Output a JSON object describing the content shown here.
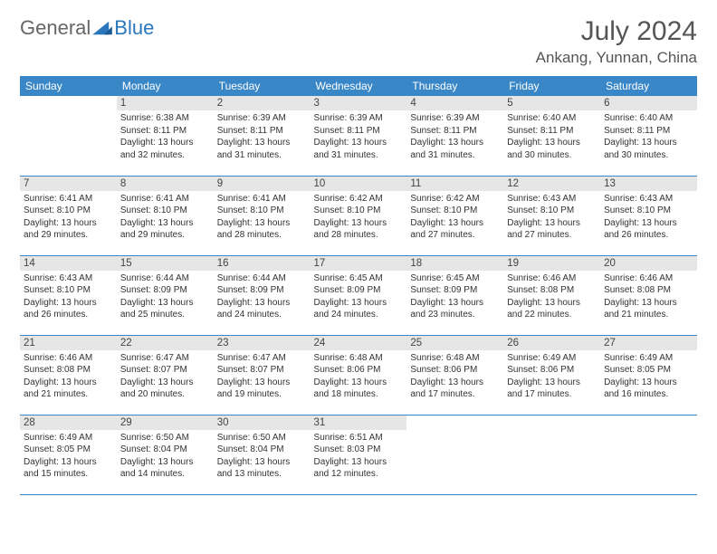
{
  "logo": {
    "general": "General",
    "blue": "Blue"
  },
  "header": {
    "month": "July 2024",
    "location": "Ankang, Yunnan, China"
  },
  "colors": {
    "header_bg": "#3a87c8",
    "header_text": "#ffffff",
    "daynum_bg": "#e6e6e6",
    "cell_border": "#3a87c8",
    "logo_blue": "#2a77bb",
    "text_gray": "#555555"
  },
  "weekdays": [
    "Sunday",
    "Monday",
    "Tuesday",
    "Wednesday",
    "Thursday",
    "Friday",
    "Saturday"
  ],
  "start_offset": 1,
  "days": [
    {
      "n": 1,
      "sunrise": "6:38 AM",
      "sunset": "8:11 PM",
      "dl1": "13 hours",
      "dl2": "and 32 minutes."
    },
    {
      "n": 2,
      "sunrise": "6:39 AM",
      "sunset": "8:11 PM",
      "dl1": "13 hours",
      "dl2": "and 31 minutes."
    },
    {
      "n": 3,
      "sunrise": "6:39 AM",
      "sunset": "8:11 PM",
      "dl1": "13 hours",
      "dl2": "and 31 minutes."
    },
    {
      "n": 4,
      "sunrise": "6:39 AM",
      "sunset": "8:11 PM",
      "dl1": "13 hours",
      "dl2": "and 31 minutes."
    },
    {
      "n": 5,
      "sunrise": "6:40 AM",
      "sunset": "8:11 PM",
      "dl1": "13 hours",
      "dl2": "and 30 minutes."
    },
    {
      "n": 6,
      "sunrise": "6:40 AM",
      "sunset": "8:11 PM",
      "dl1": "13 hours",
      "dl2": "and 30 minutes."
    },
    {
      "n": 7,
      "sunrise": "6:41 AM",
      "sunset": "8:10 PM",
      "dl1": "13 hours",
      "dl2": "and 29 minutes."
    },
    {
      "n": 8,
      "sunrise": "6:41 AM",
      "sunset": "8:10 PM",
      "dl1": "13 hours",
      "dl2": "and 29 minutes."
    },
    {
      "n": 9,
      "sunrise": "6:41 AM",
      "sunset": "8:10 PM",
      "dl1": "13 hours",
      "dl2": "and 28 minutes."
    },
    {
      "n": 10,
      "sunrise": "6:42 AM",
      "sunset": "8:10 PM",
      "dl1": "13 hours",
      "dl2": "and 28 minutes."
    },
    {
      "n": 11,
      "sunrise": "6:42 AM",
      "sunset": "8:10 PM",
      "dl1": "13 hours",
      "dl2": "and 27 minutes."
    },
    {
      "n": 12,
      "sunrise": "6:43 AM",
      "sunset": "8:10 PM",
      "dl1": "13 hours",
      "dl2": "and 27 minutes."
    },
    {
      "n": 13,
      "sunrise": "6:43 AM",
      "sunset": "8:10 PM",
      "dl1": "13 hours",
      "dl2": "and 26 minutes."
    },
    {
      "n": 14,
      "sunrise": "6:43 AM",
      "sunset": "8:10 PM",
      "dl1": "13 hours",
      "dl2": "and 26 minutes."
    },
    {
      "n": 15,
      "sunrise": "6:44 AM",
      "sunset": "8:09 PM",
      "dl1": "13 hours",
      "dl2": "and 25 minutes."
    },
    {
      "n": 16,
      "sunrise": "6:44 AM",
      "sunset": "8:09 PM",
      "dl1": "13 hours",
      "dl2": "and 24 minutes."
    },
    {
      "n": 17,
      "sunrise": "6:45 AM",
      "sunset": "8:09 PM",
      "dl1": "13 hours",
      "dl2": "and 24 minutes."
    },
    {
      "n": 18,
      "sunrise": "6:45 AM",
      "sunset": "8:09 PM",
      "dl1": "13 hours",
      "dl2": "and 23 minutes."
    },
    {
      "n": 19,
      "sunrise": "6:46 AM",
      "sunset": "8:08 PM",
      "dl1": "13 hours",
      "dl2": "and 22 minutes."
    },
    {
      "n": 20,
      "sunrise": "6:46 AM",
      "sunset": "8:08 PM",
      "dl1": "13 hours",
      "dl2": "and 21 minutes."
    },
    {
      "n": 21,
      "sunrise": "6:46 AM",
      "sunset": "8:08 PM",
      "dl1": "13 hours",
      "dl2": "and 21 minutes."
    },
    {
      "n": 22,
      "sunrise": "6:47 AM",
      "sunset": "8:07 PM",
      "dl1": "13 hours",
      "dl2": "and 20 minutes."
    },
    {
      "n": 23,
      "sunrise": "6:47 AM",
      "sunset": "8:07 PM",
      "dl1": "13 hours",
      "dl2": "and 19 minutes."
    },
    {
      "n": 24,
      "sunrise": "6:48 AM",
      "sunset": "8:06 PM",
      "dl1": "13 hours",
      "dl2": "and 18 minutes."
    },
    {
      "n": 25,
      "sunrise": "6:48 AM",
      "sunset": "8:06 PM",
      "dl1": "13 hours",
      "dl2": "and 17 minutes."
    },
    {
      "n": 26,
      "sunrise": "6:49 AM",
      "sunset": "8:06 PM",
      "dl1": "13 hours",
      "dl2": "and 17 minutes."
    },
    {
      "n": 27,
      "sunrise": "6:49 AM",
      "sunset": "8:05 PM",
      "dl1": "13 hours",
      "dl2": "and 16 minutes."
    },
    {
      "n": 28,
      "sunrise": "6:49 AM",
      "sunset": "8:05 PM",
      "dl1": "13 hours",
      "dl2": "and 15 minutes."
    },
    {
      "n": 29,
      "sunrise": "6:50 AM",
      "sunset": "8:04 PM",
      "dl1": "13 hours",
      "dl2": "and 14 minutes."
    },
    {
      "n": 30,
      "sunrise": "6:50 AM",
      "sunset": "8:04 PM",
      "dl1": "13 hours",
      "dl2": "and 13 minutes."
    },
    {
      "n": 31,
      "sunrise": "6:51 AM",
      "sunset": "8:03 PM",
      "dl1": "13 hours",
      "dl2": "and 12 minutes."
    }
  ],
  "labels": {
    "sunrise": "Sunrise:",
    "sunset": "Sunset:",
    "daylight": "Daylight:"
  }
}
